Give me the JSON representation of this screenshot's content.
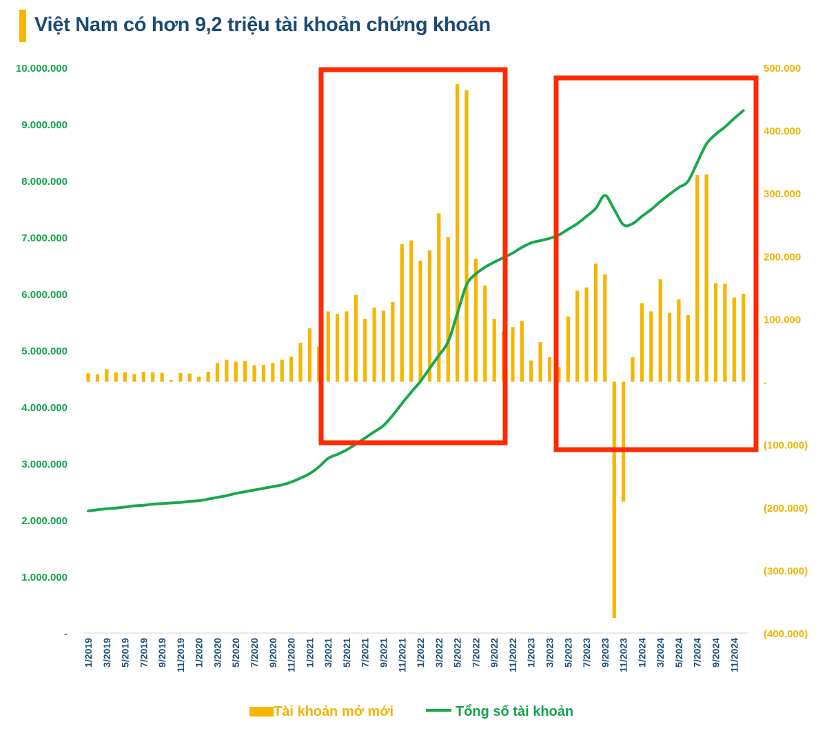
{
  "chart_data": {
    "type": "bar+line",
    "title": "Việt Nam có hơn 9,2 triệu tài khoản chứng khoán",
    "categories": [
      "1/2019",
      "2/2019",
      "3/2019",
      "4/2019",
      "5/2019",
      "6/2019",
      "7/2019",
      "8/2019",
      "9/2019",
      "10/2019",
      "11/2019",
      "12/2019",
      "1/2020",
      "2/2020",
      "3/2020",
      "4/2020",
      "5/2020",
      "6/2020",
      "7/2020",
      "8/2020",
      "9/2020",
      "10/2020",
      "11/2020",
      "12/2020",
      "1/2021",
      "2/2021",
      "3/2021",
      "4/2021",
      "5/2021",
      "6/2021",
      "7/2021",
      "8/2021",
      "9/2021",
      "10/2021",
      "11/2021",
      "12/2021",
      "1/2022",
      "2/2022",
      "3/2022",
      "4/2022",
      "5/2022",
      "6/2022",
      "7/2022",
      "8/2022",
      "9/2022",
      "10/2022",
      "11/2022",
      "12/2022",
      "1/2023",
      "2/2023",
      "3/2023",
      "4/2023",
      "5/2023",
      "6/2023",
      "7/2023",
      "8/2023",
      "9/2023",
      "10/2023",
      "11/2023",
      "12/2023",
      "1/2024",
      "2/2024",
      "3/2024",
      "4/2024",
      "5/2024",
      "6/2024",
      "7/2024",
      "8/2024",
      "9/2024",
      "10/2024",
      "11/2024",
      "12/2024"
    ],
    "series": [
      {
        "name": "Tài khoản mở mới",
        "type": "bar",
        "axis": "right",
        "color": "#f7b500",
        "values": [
          13500,
          12000,
          20000,
          15000,
          15000,
          12000,
          16000,
          15000,
          14000,
          3000,
          14000,
          13000,
          8000,
          16000,
          30000,
          35000,
          32000,
          33000,
          26000,
          27000,
          30000,
          35000,
          40000,
          62000,
          85000,
          56000,
          112000,
          108000,
          112000,
          138000,
          100000,
          118000,
          113000,
          127000,
          219000,
          225000,
          193000,
          209000,
          268000,
          230000,
          474000,
          464000,
          196000,
          153000,
          100000,
          80000,
          87000,
          97000,
          34000,
          63000,
          39000,
          23000,
          104000,
          145000,
          150000,
          188000,
          171000,
          -376000,
          -191000,
          39000,
          125000,
          112000,
          163000,
          110000,
          131000,
          106000,
          329000,
          330000,
          157000,
          156000,
          134000,
          140000
        ]
      },
      {
        "name": "Tổng số tài khoản",
        "type": "line",
        "axis": "left",
        "color": "#18a84a",
        "values": [
          2160000,
          2180000,
          2200000,
          2210000,
          2230000,
          2250000,
          2260000,
          2280000,
          2290000,
          2300000,
          2310000,
          2330000,
          2340000,
          2370000,
          2400000,
          2430000,
          2470000,
          2500000,
          2530000,
          2560000,
          2590000,
          2620000,
          2670000,
          2740000,
          2820000,
          2940000,
          3090000,
          3160000,
          3240000,
          3340000,
          3450000,
          3560000,
          3670000,
          3850000,
          4060000,
          4260000,
          4450000,
          4680000,
          4910000,
          5150000,
          5650000,
          6160000,
          6350000,
          6470000,
          6560000,
          6640000,
          6720000,
          6820000,
          6900000,
          6940000,
          6980000,
          7040000,
          7140000,
          7240000,
          7370000,
          7510000,
          7740000,
          7490000,
          7220000,
          7240000,
          7370000,
          7490000,
          7630000,
          7760000,
          7880000,
          7990000,
          8320000,
          8650000,
          8820000,
          8950000,
          9100000,
          9240000
        ]
      }
    ],
    "left_axis": {
      "range": [
        0,
        10000000
      ],
      "tick_labels": [
        "-",
        "1.000.000",
        "2.000.000",
        "3.000.000",
        "4.000.000",
        "5.000.000",
        "6.000.000",
        "7.000.000",
        "8.000.000",
        "9.000.000",
        "10.000.000"
      ]
    },
    "right_axis": {
      "range": [
        -400000,
        500000
      ],
      "tick_labels": [
        "(400.000)",
        "(300.000)",
        "(200.000)",
        "(100.000)",
        "-",
        "100.000",
        "200.000",
        "300.000",
        "400.000",
        "500.000"
      ]
    },
    "x_tick_labels": [
      "1/2019",
      "3/2019",
      "5/2019",
      "7/2019",
      "9/2019",
      "11/2019",
      "1/2020",
      "3/2020",
      "5/2020",
      "7/2020",
      "9/2020",
      "11/2020",
      "1/2021",
      "3/2021",
      "5/2021",
      "7/2021",
      "9/2021",
      "11/2021",
      "1/2022",
      "3/2022",
      "5/2022",
      "7/2022",
      "9/2022",
      "11/2022",
      "1/2023",
      "3/2023",
      "5/2023",
      "7/2023",
      "9/2023",
      "11/2023",
      "1/2024",
      "3/2024",
      "5/2024",
      "7/2024",
      "9/2024",
      "11/2024"
    ],
    "legend": {
      "position": "bottom",
      "items": [
        "Tài khoản mở mới",
        "Tổng số tài khoản"
      ]
    },
    "highlight_color": "#ff2a00",
    "grid": false
  }
}
